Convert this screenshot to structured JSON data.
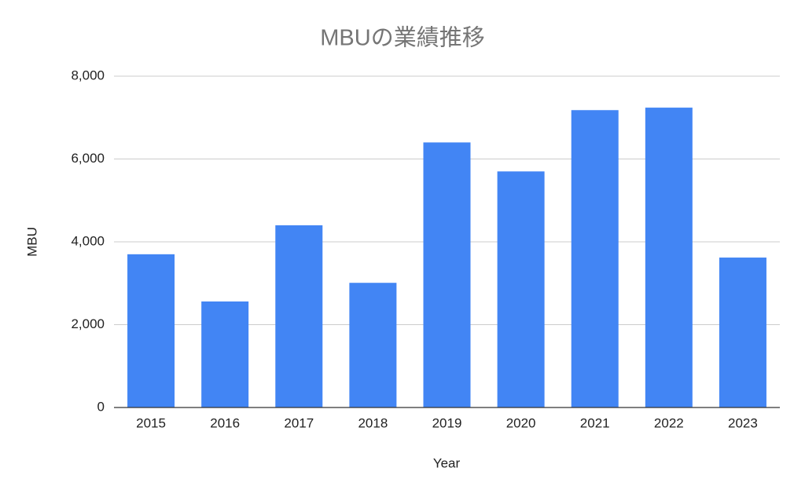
{
  "chart_data": {
    "type": "bar",
    "title": "MBUの業績推移",
    "x_label": "Year",
    "y_label": "MBU",
    "categories": [
      "2015",
      "2016",
      "2017",
      "2018",
      "2019",
      "2020",
      "2021",
      "2022",
      "2023"
    ],
    "values": [
      3700,
      2560,
      4400,
      3010,
      6400,
      5700,
      7180,
      7240,
      3620
    ],
    "color": "#4285f4",
    "ylim": [
      0,
      8000
    ],
    "yticks": [
      0,
      {
        "value": 2000,
        "label": "2,000"
      },
      {
        "value": 4000,
        "label": "4,000"
      },
      {
        "value": 6000,
        "label": "6,000"
      },
      {
        "value": 8000,
        "label": "8,000"
      }
    ],
    "grid": true
  }
}
